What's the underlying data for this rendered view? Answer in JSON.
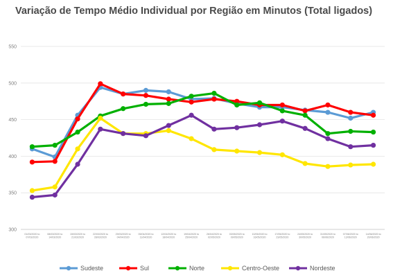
{
  "chart_data": {
    "type": "line",
    "title": "Variação de Tempo Médio Individual por Região em Minutos (Total ligados)",
    "xlabel": "",
    "ylabel": "",
    "ylim": [
      300,
      550
    ],
    "yticks": [
      "300",
      "350",
      "400",
      "450",
      "500",
      "550"
    ],
    "grid": "horizontal",
    "legend": "bottom",
    "categories": [
      [
        "01/03/2020 to",
        "07/03/2020"
      ],
      [
        "08/03/2020 to",
        "14/03/2020"
      ],
      [
        "15/03/2020 to",
        "21/03/2020"
      ],
      [
        "22/03/2020 to",
        "28/03/2020"
      ],
      [
        "29/03/2020 to",
        "04/04/2020"
      ],
      [
        "05/04/2020 to",
        "11/04/2020"
      ],
      [
        "12/04/2020 to",
        "18/04/2020"
      ],
      [
        "19/04/2020 to",
        "25/04/2020"
      ],
      [
        "26/04/2020 to",
        "02/05/2020"
      ],
      [
        "03/05/2020 to",
        "09/05/2020"
      ],
      [
        "10/05/2020 to",
        "16/05/2020"
      ],
      [
        "17/05/2020 to",
        "23/05/2020"
      ],
      [
        "24/05/2020 to",
        "30/05/2020"
      ],
      [
        "31/05/2020 to",
        "06/06/2020"
      ],
      [
        "07/06/2020 to",
        "13/06/2020"
      ],
      [
        "14/06/2020 to",
        "20/06/2020"
      ]
    ],
    "series": [
      {
        "name": "Sudeste",
        "color": "#5b9bd5",
        "values": [
          410,
          399,
          456,
          494,
          485,
          490,
          488,
          478,
          479,
          472,
          467,
          467,
          463,
          460,
          452,
          460
        ]
      },
      {
        "name": "Sul",
        "color": "#ff0000",
        "values": [
          392,
          393,
          451,
          499,
          485,
          483,
          478,
          474,
          478,
          475,
          470,
          470,
          462,
          470,
          460,
          456
        ]
      },
      {
        "name": "Norte",
        "color": "#00b000",
        "values": [
          413,
          415,
          433,
          455,
          465,
          471,
          472,
          482,
          486,
          470,
          473,
          462,
          456,
          431,
          434,
          433
        ]
      },
      {
        "name": "Centro-Oeste",
        "color": "#ffe600",
        "values": [
          353,
          358,
          410,
          452,
          431,
          431,
          435,
          424,
          409,
          407,
          405,
          402,
          390,
          386,
          388,
          389
        ]
      },
      {
        "name": "Nordeste",
        "color": "#7030a0",
        "values": [
          344,
          347,
          389,
          437,
          431,
          428,
          442,
          456,
          437,
          439,
          443,
          448,
          438,
          424,
          413,
          415
        ]
      }
    ]
  }
}
